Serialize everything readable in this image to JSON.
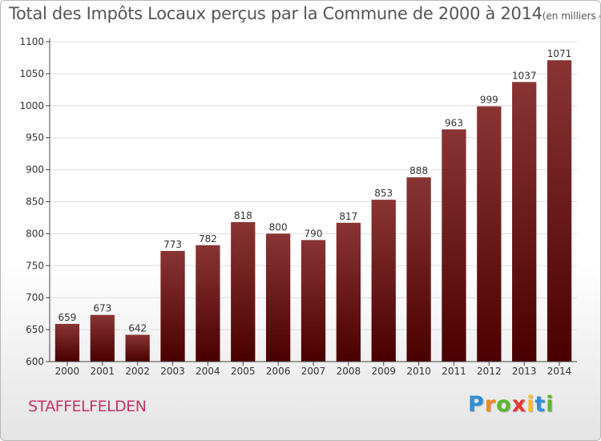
{
  "header": {
    "title": "Total des Impôts Locaux perçus par la Commune de 2000 à 2014",
    "unit": "(en milliers d'€)"
  },
  "footer": {
    "commune": "STAFFELFELDEN",
    "logo": [
      "P",
      "r",
      "o",
      "x",
      "i",
      "t",
      "i"
    ],
    "logo_colors": [
      "#2f8fd6",
      "#f08a1a",
      "#58b82f",
      "#e53935",
      "#f4c020",
      "#2f8fd6",
      "#58b82f"
    ]
  },
  "chart_data": {
    "type": "bar",
    "title": "Total des Impôts Locaux perçus par la Commune de 2000 à 2014",
    "xlabel": "",
    "ylabel": "",
    "ylim": [
      600,
      1100
    ],
    "yticks": [
      600,
      650,
      700,
      750,
      800,
      850,
      900,
      950,
      1000,
      1050,
      1100
    ],
    "categories": [
      "2000",
      "2001",
      "2002",
      "2003",
      "2004",
      "2005",
      "2006",
      "2007",
      "2008",
      "2009",
      "2010",
      "2011",
      "2012",
      "2013",
      "2014"
    ],
    "values": [
      659,
      673,
      642,
      773,
      782,
      818,
      800,
      790,
      817,
      853,
      888,
      963,
      999,
      1037,
      1071
    ],
    "colors": {
      "bar_top": "#8a3434",
      "bar_bottom": "#4a0000",
      "axis": "#444444",
      "grid": "#dddddd"
    }
  }
}
